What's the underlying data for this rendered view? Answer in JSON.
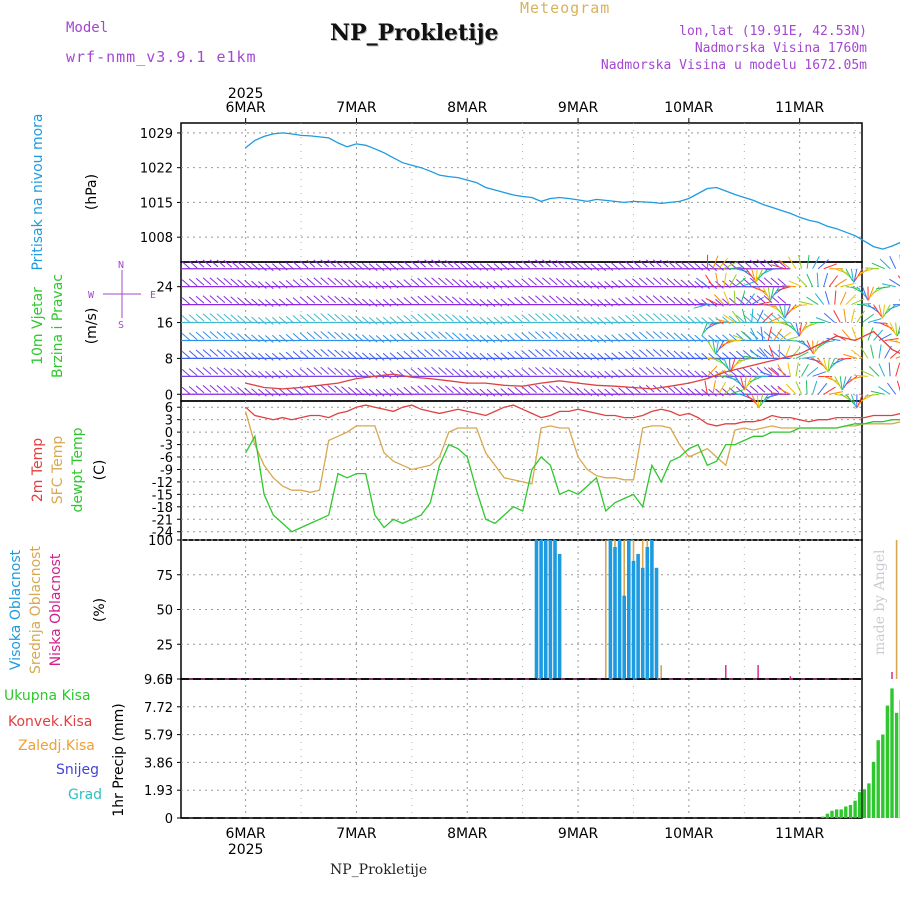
{
  "header": {
    "title": "NP_Prokletije",
    "subtitle": "Meteogram",
    "model_label": "Model",
    "model_value": "wrf-nmm_v3.9.1 e1km",
    "lonlat": "lon,lat (19.91E, 42.53N)",
    "elevation": "Nadmorska Visina 1760m",
    "elevation_model": "Nadmorska Visina u modelu 1672.05m"
  },
  "footer": {
    "location": "NP_Prokletije"
  },
  "watermark": "made by Angel",
  "colors": {
    "pressure": "#1e9be0",
    "red": "#e04040",
    "tan": "#d8a850",
    "green": "#2ec82e",
    "blue": "#1e9be0",
    "magenta": "#d0208c",
    "purple": "#8a2be2",
    "grid": "#999999"
  },
  "chart_data": [
    {
      "type": "line",
      "panel": "pressure",
      "ylabel_lines": [
        "Pritisak na nivou mora",
        "(hPa)"
      ],
      "ylim": [
        1003,
        1031
      ],
      "yticks": [
        1008,
        1015,
        1022,
        1029
      ],
      "grid": true,
      "x": [
        0,
        2,
        4,
        6,
        8,
        10,
        12,
        14,
        16,
        18,
        20,
        22,
        24,
        26,
        28,
        30,
        32,
        34,
        36,
        38,
        40,
        42,
        44,
        46,
        48,
        50,
        52,
        54,
        56,
        58,
        60,
        62,
        64,
        66,
        68,
        70,
        72,
        74,
        76,
        78,
        80,
        82,
        84,
        86,
        88,
        90,
        92,
        94,
        96,
        98,
        100,
        102,
        104,
        106,
        108,
        110,
        112,
        114,
        116,
        118,
        120,
        122,
        124,
        126,
        128,
        130,
        132,
        134,
        136,
        138,
        140,
        142,
        144
      ],
      "series": [
        {
          "name": "",
          "values": [
            1026,
            1027.5,
            1028.3,
            1028.8,
            1029,
            1028.8,
            1028.5,
            1028.4,
            1028.2,
            1028,
            1027,
            1026.2,
            1026.8,
            1026.5,
            1025.8,
            1025,
            1024,
            1023,
            1022.5,
            1022,
            1021.3,
            1020.5,
            1020.2,
            1020,
            1019.5,
            1019,
            1018,
            1017.5,
            1017,
            1016.5,
            1016.2,
            1016,
            1015.2,
            1015.8,
            1016,
            1015.8,
            1015.5,
            1015.2,
            1015.6,
            1015.4,
            1015.2,
            1015,
            1015.2,
            1015.1,
            1015,
            1014.8,
            1015,
            1015.2,
            1015.8,
            1016.8,
            1017.8,
            1018,
            1017.3,
            1016.6,
            1016,
            1015.4,
            1014.6,
            1014,
            1013.4,
            1012.8,
            1012,
            1011.4,
            1011,
            1010.2,
            1009.7,
            1009,
            1008.3,
            1007.2,
            1006.1,
            1005.6,
            1006.2,
            1007,
            1008
          ]
        }
      ]
    },
    {
      "type": "barbs",
      "panel": "wind",
      "ylabel_lines": [
        "10m Vjetar",
        "Brzina i Pravac",
        "(m/s)"
      ],
      "compass": {
        "n": "N",
        "s": "S",
        "e": "E",
        "w": "W"
      },
      "ylim": [
        -1.5,
        29.5
      ],
      "yticks": [
        0,
        8,
        16,
        24
      ],
      "grid": true,
      "levels": [
        0,
        4,
        8,
        12,
        16,
        20,
        24,
        28
      ],
      "x": [
        0,
        4,
        8,
        12,
        16,
        20,
        24,
        28,
        32,
        36,
        40,
        44,
        48,
        52,
        56,
        60,
        64,
        68,
        72,
        76,
        80,
        84,
        88,
        92,
        96,
        100,
        104,
        108,
        112,
        116,
        120,
        124,
        128,
        132,
        136,
        140,
        144
      ],
      "series": [
        {
          "name": "",
          "values": [
            2.5,
            1.5,
            1.2,
            1.5,
            2,
            2.5,
            3.5,
            4,
            4.5,
            3.8,
            3.5,
            3,
            2.5,
            2.5,
            2,
            1.8,
            2.5,
            3,
            2.5,
            2,
            1.8,
            1.5,
            1.2,
            1.8,
            2.5,
            3.5,
            5,
            6,
            7,
            8,
            9,
            11,
            13,
            12,
            14,
            10,
            8
          ]
        }
      ]
    },
    {
      "type": "line",
      "panel": "temperature",
      "ylabel_lines": [
        "2m Temp",
        "SFC Temp",
        "dewpt Temp",
        "(C)"
      ],
      "ylim": [
        -26,
        7.5
      ],
      "yticks": [
        -24,
        -21,
        -18,
        -15,
        -12,
        -9,
        -6,
        -3,
        0,
        3,
        6
      ],
      "grid": true,
      "x": [
        0,
        2,
        4,
        6,
        8,
        10,
        12,
        14,
        16,
        18,
        20,
        22,
        24,
        26,
        28,
        30,
        32,
        34,
        36,
        38,
        40,
        42,
        44,
        46,
        48,
        50,
        52,
        54,
        56,
        58,
        60,
        62,
        64,
        66,
        68,
        70,
        72,
        74,
        76,
        78,
        80,
        82,
        84,
        86,
        88,
        90,
        92,
        94,
        96,
        98,
        100,
        102,
        104,
        106,
        108,
        110,
        112,
        114,
        116,
        118,
        120,
        122,
        124,
        126,
        128,
        130,
        132,
        134,
        136,
        138,
        140,
        142,
        144
      ],
      "series": [
        {
          "name": "2m Temp",
          "values": [
            6,
            4,
            3.5,
            3,
            3.5,
            3,
            3.5,
            4,
            4,
            3.5,
            4.5,
            5,
            6,
            6.5,
            6,
            5.5,
            5,
            6,
            6.5,
            5.5,
            5,
            4.5,
            5,
            5.5,
            5,
            4.5,
            4,
            5,
            6,
            6.5,
            5.5,
            4.5,
            3.5,
            4,
            5,
            5,
            5.5,
            5,
            4.5,
            4,
            4,
            3.5,
            3.5,
            4,
            5,
            5.5,
            5,
            4,
            4.5,
            3.5,
            2,
            1.5,
            2,
            2,
            2.5,
            2.5,
            3,
            4,
            3.5,
            3.5,
            3,
            2.5,
            3,
            3,
            3.5,
            3.5,
            3.5,
            3.5,
            4,
            4,
            4,
            4.5,
            4
          ]
        },
        {
          "name": "SFC Temp",
          "values": [
            5,
            -3,
            -8,
            -11,
            -13,
            -14,
            -14,
            -14.5,
            -14,
            -2,
            -1,
            0,
            1.5,
            1.5,
            1.5,
            -5,
            -7,
            -8,
            -9,
            -8.5,
            -8,
            -6,
            0,
            1,
            1,
            1,
            -5,
            -8,
            -11,
            -11.5,
            -12,
            -12.5,
            1,
            1.5,
            1,
            1,
            -6,
            -9,
            -10.5,
            -11,
            -11,
            -11.5,
            -11.5,
            1,
            1.5,
            1.5,
            1,
            -3,
            -6,
            -5,
            -4,
            -6,
            -8,
            0.5,
            1,
            0.5,
            1,
            1.5,
            1,
            1,
            1,
            1,
            1,
            1,
            1,
            1.5,
            1.5,
            2,
            2,
            2,
            2,
            2.5,
            3
          ]
        },
        {
          "name": "dewpt Temp",
          "values": [
            -5,
            -1,
            -15,
            -20,
            -22,
            -24,
            -23,
            -22,
            -21,
            -20,
            -10,
            -11,
            -10,
            -10,
            -20,
            -23,
            -21,
            -22,
            -21,
            -20,
            -17,
            -8,
            -3,
            -4,
            -6,
            -14,
            -21,
            -22,
            -20,
            -18,
            -19,
            -9,
            -6,
            -8,
            -15,
            -14,
            -15,
            -13,
            -11,
            -19,
            -17,
            -16,
            -15,
            -18,
            -8,
            -12,
            -7,
            -6,
            -4,
            -3,
            -8,
            -7,
            -3,
            -3,
            -2,
            -1,
            -1,
            0,
            0,
            0,
            1,
            1,
            1,
            1,
            1,
            1.5,
            2,
            2,
            2.5,
            2.5,
            3,
            3,
            3
          ]
        }
      ]
    },
    {
      "type": "bar",
      "panel": "clouds",
      "ylabel_lines": [
        "Visoka Oblacnost",
        "Srednja Oblacnost",
        "Niska Oblacnost",
        "(%)"
      ],
      "ylim": [
        0,
        100
      ],
      "yticks": [
        0,
        25,
        50,
        75,
        100
      ],
      "grid": true,
      "series": [
        {
          "name": "Visoka Oblacnost",
          "x": [
            63,
            64,
            65,
            66,
            67,
            68,
            79,
            80,
            81,
            82,
            83,
            84,
            85,
            86,
            87,
            88,
            89
          ],
          "values": [
            100,
            100,
            100,
            100,
            100,
            90,
            100,
            95,
            100,
            60,
            100,
            85,
            90,
            80,
            95,
            100,
            80
          ]
        },
        {
          "name": "Srednja Oblacnost",
          "x": [
            78,
            79,
            80,
            81,
            82,
            83,
            84,
            85,
            86,
            87,
            88,
            89,
            90,
            141,
            142
          ],
          "values": [
            100,
            100,
            100,
            100,
            100,
            100,
            100,
            47,
            100,
            100,
            65,
            65,
            10,
            100,
            40
          ]
        },
        {
          "name": "Niska Oblacnost",
          "x": [
            104,
            111,
            118,
            140,
            142,
            145
          ],
          "values": [
            10,
            10,
            2,
            5,
            10,
            15
          ]
        }
      ]
    },
    {
      "type": "bar",
      "panel": "precip",
      "ylabel_lines": [
        "1hr Precip (mm)"
      ],
      "legend": [
        "Ukupna Kisa",
        "Konvek.Kisa",
        "Zaledj.Kisa",
        "Snijeg",
        "Grad"
      ],
      "legend_position": "left",
      "ylim": [
        0,
        9.65
      ],
      "yticks": [
        0,
        1.93,
        3.86,
        5.79,
        7.72,
        9.65
      ],
      "grid": true,
      "series": [
        {
          "name": "Ukupna Kisa",
          "x": [
            125,
            126,
            127,
            128,
            129,
            130,
            131,
            132,
            133,
            134,
            135,
            136,
            137,
            138,
            139,
            140,
            141,
            142,
            143,
            144,
            145,
            146,
            147
          ],
          "values": [
            0.1,
            0.3,
            0.5,
            0.6,
            0.6,
            0.8,
            0.9,
            1.2,
            1.8,
            2.0,
            2.4,
            3.9,
            5.4,
            5.8,
            7.8,
            9.0,
            7.3,
            8.2,
            2.8,
            0.5,
            0.1,
            0.2,
            0.3
          ]
        }
      ]
    }
  ],
  "axis": {
    "year": "2025",
    "days": [
      "6MAR",
      "7MAR",
      "8MAR",
      "9MAR",
      "10MAR",
      "11MAR"
    ]
  }
}
